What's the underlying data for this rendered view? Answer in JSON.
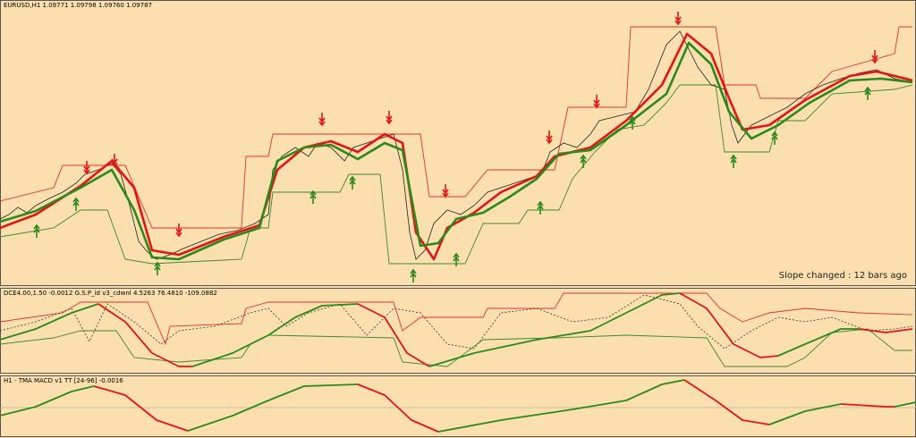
{
  "header": {
    "symbol_info": "EURUSD,H1  1.09771 1.09798 1.09760 1.09787"
  },
  "main_panel": {
    "annotation": "Slope changed : 12 bars ago"
  },
  "indicator_panel": {
    "label": "DCE4.00,1.50 -0.0012  G.S.P_id v3_cdwnl 4.5263 76.4810 -109.0882"
  },
  "macd_panel": {
    "label": "H1 - TMA MACD v1 TT [24-96] -0.0016"
  }
}
